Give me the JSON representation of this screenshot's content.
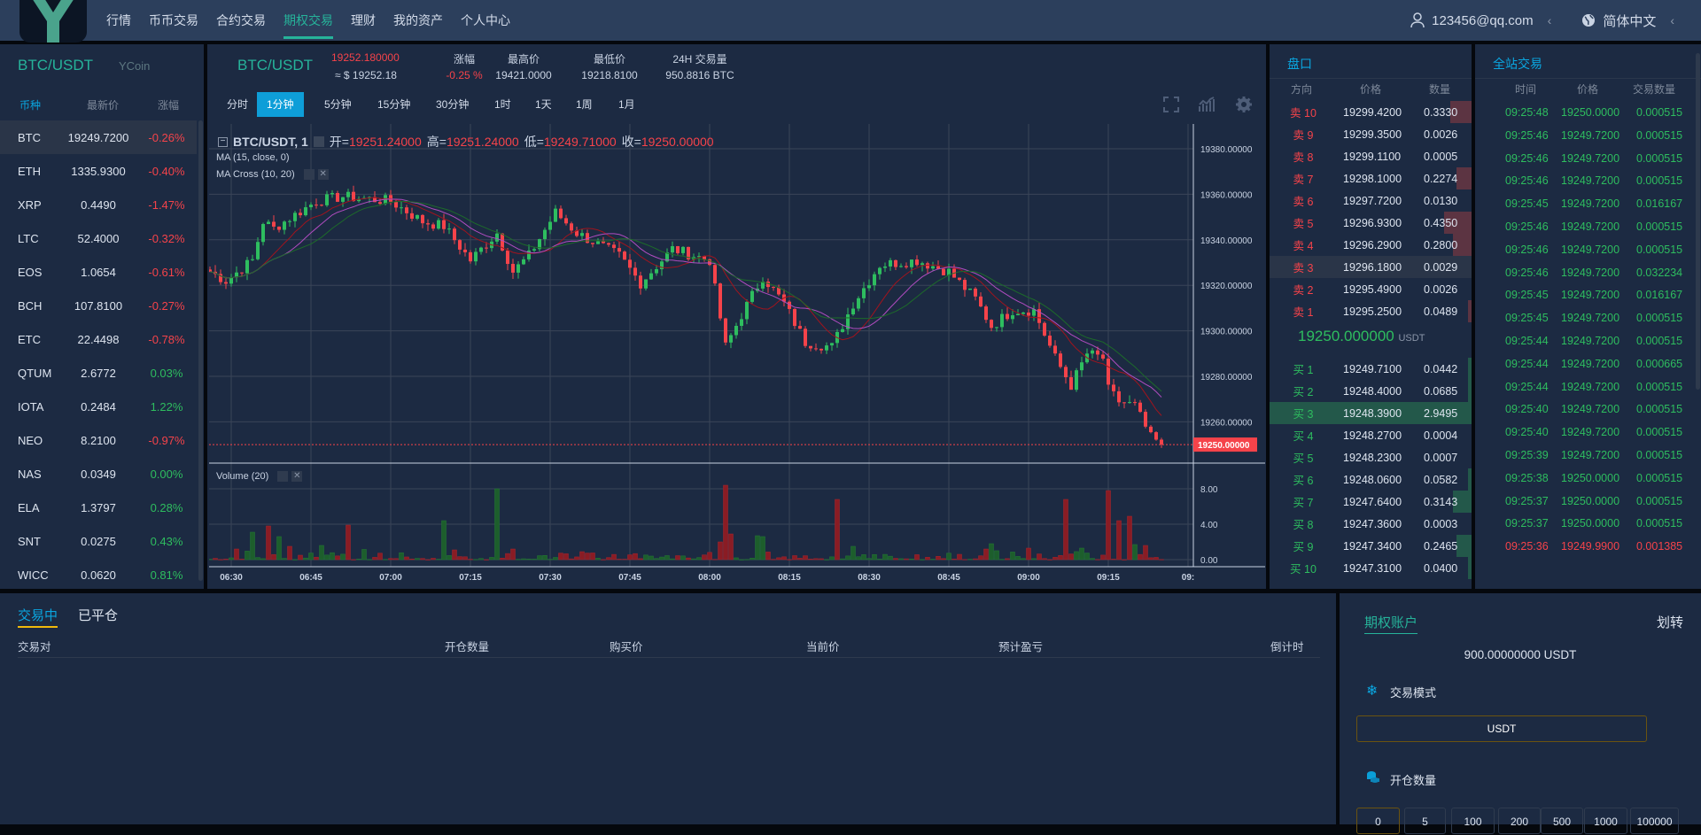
{
  "header": {
    "logo_text": "YCoin",
    "nav": [
      {
        "label": "行情"
      },
      {
        "label": "币币交易"
      },
      {
        "label": "合约交易"
      },
      {
        "label": "期权交易",
        "active": true
      },
      {
        "label": "理财"
      },
      {
        "label": "我的资产"
      },
      {
        "label": "个人中心"
      }
    ],
    "user_email": "123456@qq.com",
    "language": "简体中文",
    "user_icon": "user-icon",
    "globe_icon": "globe-icon"
  },
  "markets": {
    "title": "BTC/USDT",
    "columns": [
      "币种",
      "最新价",
      "涨幅"
    ],
    "rows": [
      {
        "symbol": "BTC",
        "price": "19249.7200",
        "change": "-0.26%",
        "selected": true
      },
      {
        "symbol": "ETH",
        "price": "1335.9300",
        "change": "-0.40%"
      },
      {
        "symbol": "XRP",
        "price": "0.4490",
        "change": "-1.47%"
      },
      {
        "symbol": "LTC",
        "price": "52.4000",
        "change": "-0.32%"
      },
      {
        "symbol": "EOS",
        "price": "1.0654",
        "change": "-0.61%"
      },
      {
        "symbol": "BCH",
        "price": "107.8100",
        "change": "-0.27%"
      },
      {
        "symbol": "ETC",
        "price": "22.4498",
        "change": "-0.78%"
      },
      {
        "symbol": "QTUM",
        "price": "2.6772",
        "change": "0.03%"
      },
      {
        "symbol": "IOTA",
        "price": "0.2484",
        "change": "1.22%"
      },
      {
        "symbol": "NEO",
        "price": "8.2100",
        "change": "-0.97%"
      },
      {
        "symbol": "NAS",
        "price": "0.0349",
        "change": "0.00%"
      },
      {
        "symbol": "ELA",
        "price": "1.3797",
        "change": "0.28%"
      },
      {
        "symbol": "SNT",
        "price": "0.0275",
        "change": "0.43%"
      },
      {
        "symbol": "WICC",
        "price": "0.0620",
        "change": "0.81%"
      }
    ]
  },
  "ticker": {
    "pair": "BTC/USDT",
    "price": "19252.180000",
    "price_usd": "≈ $ 19252.18",
    "change_label": "涨幅",
    "change": "-0.25 %",
    "high_label": "最高价",
    "high": "19421.0000",
    "low_label": "最低价",
    "low": "19218.8100",
    "volume_label": "24H 交易量",
    "volume": "950.8816 BTC"
  },
  "timeframes": [
    {
      "label": "分时"
    },
    {
      "label": "1分钟",
      "active": true
    },
    {
      "label": "5分钟"
    },
    {
      "label": "15分钟"
    },
    {
      "label": "30分钟"
    },
    {
      "label": "1时"
    },
    {
      "label": "1天"
    },
    {
      "label": "1周"
    },
    {
      "label": "1月"
    }
  ],
  "chart_toolbar": [
    "fullscreen-icon",
    "indicators-icon",
    "settings-gear-icon"
  ],
  "chart_data": {
    "type": "candlestick",
    "legend": {
      "symbol": "BTC/USDT, 1",
      "open_label": "开=",
      "open": "19251.24000",
      "high_label": "高=",
      "high": "19251.24000",
      "low_label": "低=",
      "low": "19249.71000",
      "close_label": "收=",
      "close": "19250.00000"
    },
    "indicators": [
      "MA (15, close, 0)",
      "MA Cross (10, 20)"
    ],
    "volume_label": "Volume (20)",
    "y_ticks": [
      "19380.00000",
      "19360.00000",
      "19340.00000",
      "19320.00000",
      "19300.00000",
      "19280.00000",
      "19260.00000"
    ],
    "last_price_label": "19250.00000",
    "volume_ticks": [
      "8.00",
      "4.00",
      "0.00"
    ],
    "x_ticks": [
      "06:30",
      "06:45",
      "07:00",
      "07:15",
      "07:30",
      "07:45",
      "08:00",
      "08:15",
      "08:30",
      "08:45",
      "09:00",
      "09:15",
      "09:"
    ],
    "ylim": [
      19240,
      19392
    ],
    "colors": {
      "up": "#2ebd5f",
      "down": "#f5434a",
      "ma_fast": "#a0141e",
      "ma_mid": "#b04cc0",
      "ma_slow": "#1d6b2a"
    },
    "price_path": [
      [
        "06:26",
        19326
      ],
      [
        "06:29",
        19322
      ],
      [
        "06:34",
        19331
      ],
      [
        "06:36",
        19348
      ],
      [
        "06:38",
        19345
      ],
      [
        "06:46",
        19357
      ],
      [
        "06:51",
        19359
      ],
      [
        "07:00",
        19357
      ],
      [
        "07:06",
        19348
      ],
      [
        "07:10",
        19346
      ],
      [
        "07:15",
        19331
      ],
      [
        "07:20",
        19343
      ],
      [
        "07:23",
        19326
      ],
      [
        "07:26",
        19333
      ],
      [
        "07:31",
        19352
      ],
      [
        "07:35",
        19343
      ],
      [
        "07:43",
        19333
      ],
      [
        "07:47",
        19321
      ],
      [
        "07:53",
        19336
      ],
      [
        "08:00",
        19331
      ],
      [
        "08:03",
        19293
      ],
      [
        "08:06",
        19307
      ],
      [
        "08:10",
        19324
      ],
      [
        "08:14",
        19312
      ],
      [
        "08:18",
        19295
      ],
      [
        "08:23",
        19293
      ],
      [
        "08:27",
        19312
      ],
      [
        "08:32",
        19329
      ],
      [
        "08:39",
        19331
      ],
      [
        "08:45",
        19326
      ],
      [
        "08:50",
        19314
      ],
      [
        "08:53",
        19302
      ],
      [
        "08:57",
        19309
      ],
      [
        "09:01",
        19309
      ],
      [
        "09:05",
        19288
      ],
      [
        "09:08",
        19276
      ],
      [
        "09:11",
        19290
      ],
      [
        "09:14",
        19288
      ],
      [
        "09:15",
        19274
      ],
      [
        "09:17",
        19269
      ],
      [
        "09:20",
        19267
      ],
      [
        "09:23",
        19253
      ],
      [
        "09:25",
        19250
      ]
    ],
    "volume_spikes": [
      [
        "06:31",
        1.2,
        "down"
      ],
      [
        "06:34",
        3.1,
        "up"
      ],
      [
        "06:37",
        3.8,
        "down"
      ],
      [
        "06:39",
        2.6,
        "up"
      ],
      [
        "06:41",
        1.5,
        "down"
      ],
      [
        "06:47",
        1.6,
        "up"
      ],
      [
        "06:52",
        3.9,
        "down"
      ],
      [
        "07:10",
        4.4,
        "up"
      ],
      [
        "07:12",
        1.1,
        "down"
      ],
      [
        "07:20",
        8.0,
        "up"
      ],
      [
        "07:23",
        1.2,
        "down"
      ],
      [
        "07:36",
        0.9,
        "down"
      ],
      [
        "08:02",
        2.0,
        "down"
      ],
      [
        "08:03",
        8.4,
        "down"
      ],
      [
        "08:04",
        2.9,
        "down"
      ],
      [
        "08:09",
        2.7,
        "up"
      ],
      [
        "08:10",
        2.6,
        "up"
      ],
      [
        "08:24",
        6.8,
        "down"
      ],
      [
        "08:27",
        1.5,
        "up"
      ],
      [
        "08:52",
        1.2,
        "down"
      ],
      [
        "08:53",
        1.8,
        "up"
      ],
      [
        "09:00",
        1.3,
        "down"
      ],
      [
        "09:07",
        6.8,
        "down"
      ],
      [
        "09:10",
        1.3,
        "up"
      ],
      [
        "09:15",
        7.8,
        "down"
      ],
      [
        "09:17",
        4.4,
        "down"
      ],
      [
        "09:19",
        4.9,
        "down"
      ],
      [
        "09:20",
        1.7,
        "up"
      ],
      [
        "09:22",
        1.6,
        "down"
      ]
    ]
  },
  "orderbook": {
    "title": "盘口",
    "columns": [
      "方向",
      "价格",
      "数量"
    ],
    "asks": [
      {
        "side": "卖 10",
        "price": "19299.4200",
        "qty": "0.3330",
        "depth": 0.35
      },
      {
        "side": "卖 9",
        "price": "19299.3500",
        "qty": "0.0026",
        "depth": 0
      },
      {
        "side": "卖 8",
        "price": "19299.1100",
        "qty": "0.0005",
        "depth": 0
      },
      {
        "side": "卖 7",
        "price": "19298.1000",
        "qty": "0.2274",
        "depth": 0.25
      },
      {
        "side": "卖 6",
        "price": "19297.7200",
        "qty": "0.0130",
        "depth": 0
      },
      {
        "side": "卖 5",
        "price": "19296.9300",
        "qty": "0.4350",
        "depth": 0.45
      },
      {
        "side": "卖 4",
        "price": "19296.2900",
        "qty": "0.2800",
        "depth": 0.3
      },
      {
        "side": "卖 3",
        "price": "19296.1800",
        "qty": "0.0029",
        "depth": 0,
        "highlight": true
      },
      {
        "side": "卖 2",
        "price": "19295.4900",
        "qty": "0.0026",
        "depth": 0
      },
      {
        "side": "卖 1",
        "price": "19295.2500",
        "qty": "0.0489",
        "depth": 0.04
      }
    ],
    "last_price": "19250.000000",
    "last_unit": "USDT",
    "bids": [
      {
        "side": "买 1",
        "price": "19249.7100",
        "qty": "0.0442",
        "depth": 0.03
      },
      {
        "side": "买 2",
        "price": "19248.4000",
        "qty": "0.0685",
        "depth": 0.05
      },
      {
        "side": "买 3",
        "price": "19248.3900",
        "qty": "2.9495",
        "depth": 1,
        "highlight": true
      },
      {
        "side": "买 4",
        "price": "19248.2700",
        "qty": "0.0004",
        "depth": 0
      },
      {
        "side": "买 5",
        "price": "19248.2300",
        "qty": "0.0007",
        "depth": 0
      },
      {
        "side": "买 6",
        "price": "19248.0600",
        "qty": "0.0582",
        "depth": 0.05
      },
      {
        "side": "买 7",
        "price": "19247.6400",
        "qty": "0.3143",
        "depth": 0.3
      },
      {
        "side": "买 8",
        "price": "19247.3600",
        "qty": "0.0003",
        "depth": 0
      },
      {
        "side": "买 9",
        "price": "19247.3400",
        "qty": "0.2465",
        "depth": 0.25
      },
      {
        "side": "买 10",
        "price": "19247.3100",
        "qty": "0.0400",
        "depth": 0.03
      }
    ]
  },
  "trades": {
    "title": "全站交易",
    "columns": [
      "时间",
      "价格",
      "交易数量"
    ],
    "rows": [
      {
        "time": "09:25:48",
        "price": "19250.0000",
        "qty": "0.000515",
        "side": "buy"
      },
      {
        "time": "09:25:46",
        "price": "19249.7200",
        "qty": "0.000515",
        "side": "buy"
      },
      {
        "time": "09:25:46",
        "price": "19249.7200",
        "qty": "0.000515",
        "side": "buy"
      },
      {
        "time": "09:25:46",
        "price": "19249.7200",
        "qty": "0.000515",
        "side": "buy"
      },
      {
        "time": "09:25:45",
        "price": "19249.7200",
        "qty": "0.016167",
        "side": "buy"
      },
      {
        "time": "09:25:46",
        "price": "19249.7200",
        "qty": "0.000515",
        "side": "buy"
      },
      {
        "time": "09:25:46",
        "price": "19249.7200",
        "qty": "0.000515",
        "side": "buy"
      },
      {
        "time": "09:25:46",
        "price": "19249.7200",
        "qty": "0.032234",
        "side": "buy"
      },
      {
        "time": "09:25:45",
        "price": "19249.7200",
        "qty": "0.016167",
        "side": "buy"
      },
      {
        "time": "09:25:45",
        "price": "19249.7200",
        "qty": "0.000515",
        "side": "buy"
      },
      {
        "time": "09:25:44",
        "price": "19249.7200",
        "qty": "0.000515",
        "side": "buy"
      },
      {
        "time": "09:25:44",
        "price": "19249.7200",
        "qty": "0.000665",
        "side": "buy"
      },
      {
        "time": "09:25:44",
        "price": "19249.7200",
        "qty": "0.000515",
        "side": "buy"
      },
      {
        "time": "09:25:40",
        "price": "19249.7200",
        "qty": "0.000515",
        "side": "buy"
      },
      {
        "time": "09:25:40",
        "price": "19249.7200",
        "qty": "0.000515",
        "side": "buy"
      },
      {
        "time": "09:25:39",
        "price": "19249.7200",
        "qty": "0.000515",
        "side": "buy"
      },
      {
        "time": "09:25:38",
        "price": "19250.0000",
        "qty": "0.000515",
        "side": "buy"
      },
      {
        "time": "09:25:37",
        "price": "19250.0000",
        "qty": "0.000515",
        "side": "buy"
      },
      {
        "time": "09:25:37",
        "price": "19250.0000",
        "qty": "0.000515",
        "side": "buy"
      },
      {
        "time": "09:25:36",
        "price": "19249.9900",
        "qty": "0.001385",
        "side": "sell"
      }
    ]
  },
  "positions": {
    "tabs": [
      {
        "label": "交易中",
        "active": true
      },
      {
        "label": "已平仓"
      }
    ],
    "columns": [
      "交易对",
      "开仓数量",
      "购买价",
      "当前价",
      "预计盈亏",
      "倒计时"
    ]
  },
  "account": {
    "title": "期权账户",
    "transfer": "划转",
    "balance": "900.00000000 USDT",
    "mode_label": "交易模式",
    "mode_value": "USDT",
    "amount_label": "开仓数量",
    "amounts": [
      {
        "label": "0",
        "selected": true
      },
      {
        "label": "5"
      },
      {
        "label": "100"
      },
      {
        "label": "200"
      },
      {
        "label": "500"
      },
      {
        "label": "1000"
      },
      {
        "label": "100000"
      }
    ]
  }
}
